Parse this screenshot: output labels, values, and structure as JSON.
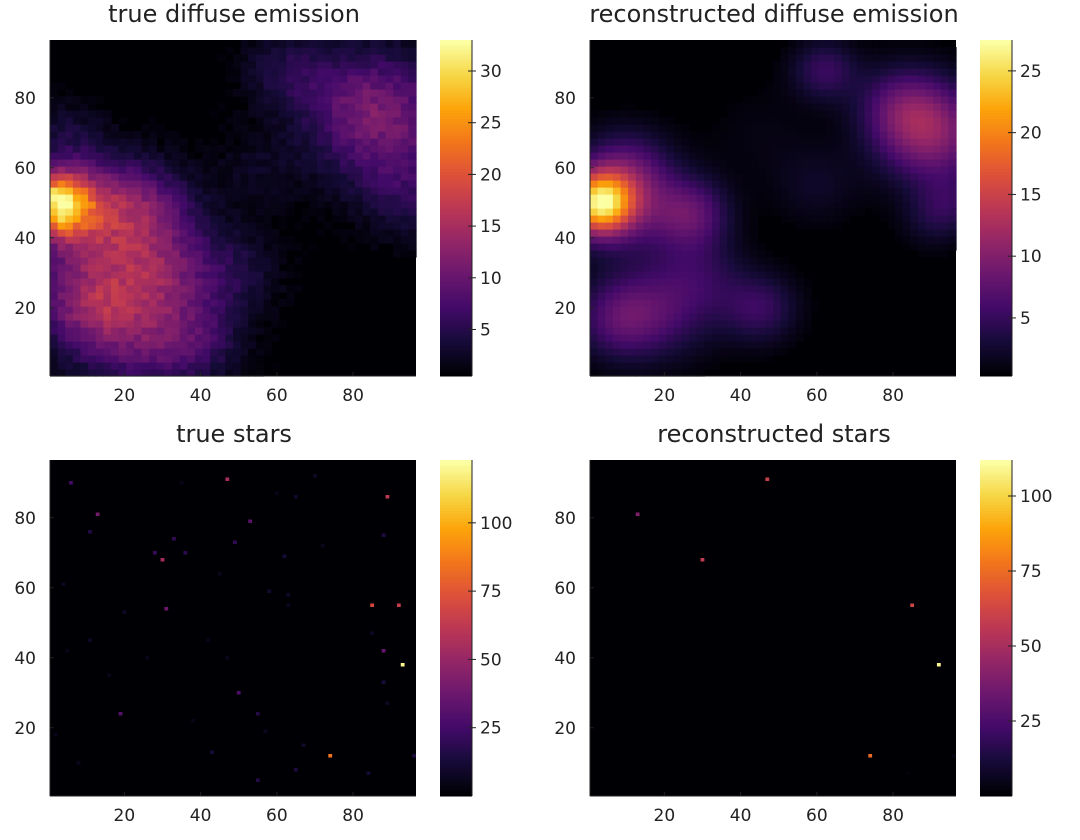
{
  "chart_data": [
    {
      "id": "p1",
      "type": "heatmap",
      "title": "true diffuse emission",
      "xlim": [
        1,
        96
      ],
      "ylim": [
        1,
        96
      ],
      "xticks": [
        "20",
        "40",
        "60",
        "80"
      ],
      "yticks": [
        "20",
        "40",
        "60",
        "80"
      ],
      "colormap": "inferno",
      "colorbar": {
        "min": 0.5,
        "max": 33,
        "ticks": [
          "5",
          "10",
          "15",
          "20",
          "25",
          "30"
        ],
        "tick_values": [
          5,
          10,
          15,
          20,
          25,
          30
        ]
      },
      "blobs": [
        [
          2,
          50,
          6,
          24
        ],
        [
          9,
          50,
          9,
          8
        ],
        [
          18,
          40,
          14,
          6
        ],
        [
          25,
          50,
          8,
          5
        ],
        [
          20,
          25,
          16,
          7
        ],
        [
          10,
          20,
          8,
          6
        ],
        [
          25,
          10,
          10,
          5
        ],
        [
          40,
          10,
          8,
          4
        ],
        [
          30,
          30,
          10,
          4
        ],
        [
          5,
          70,
          7,
          3
        ],
        [
          90,
          72,
          14,
          9
        ],
        [
          80,
          80,
          10,
          4
        ],
        [
          62,
          88,
          8,
          4
        ],
        [
          95,
          50,
          8,
          3
        ],
        [
          55,
          60,
          8,
          2
        ],
        [
          50,
          30,
          8,
          3
        ]
      ],
      "texture": 1.8
    },
    {
      "id": "p2",
      "type": "heatmap",
      "title": "reconstructed diffuse emission",
      "xlim": [
        1,
        96
      ],
      "ylim": [
        1,
        96
      ],
      "xticks": [
        "20",
        "40",
        "60",
        "80"
      ],
      "yticks": [
        "20",
        "40",
        "60",
        "80"
      ],
      "colormap": "inferno",
      "colorbar": {
        "min": 0.3,
        "max": 27.5,
        "ticks": [
          "5",
          "10",
          "15",
          "20",
          "25"
        ],
        "tick_values": [
          5,
          10,
          15,
          20,
          25
        ]
      },
      "blobs": [
        [
          3,
          50,
          6,
          22
        ],
        [
          10,
          50,
          10,
          6
        ],
        [
          10,
          60,
          8,
          5
        ],
        [
          27,
          47,
          7,
          7
        ],
        [
          8,
          17,
          8,
          6
        ],
        [
          20,
          20,
          10,
          5
        ],
        [
          45,
          20,
          7,
          5
        ],
        [
          30,
          30,
          8,
          3
        ],
        [
          90,
          70,
          10,
          10
        ],
        [
          82,
          78,
          8,
          5
        ],
        [
          62,
          88,
          6,
          5
        ],
        [
          95,
          50,
          6,
          3
        ],
        [
          60,
          55,
          8,
          2
        ],
        [
          90,
          45,
          6,
          2
        ],
        [
          45,
          70,
          10,
          1
        ]
      ],
      "texture": 0
    },
    {
      "id": "p3",
      "type": "heatmap",
      "title": "true stars",
      "xlim": [
        1,
        96
      ],
      "ylim": [
        1,
        96
      ],
      "xticks": [
        "20",
        "40",
        "60",
        "80"
      ],
      "yticks": [
        "20",
        "40",
        "60",
        "80"
      ],
      "colormap": "inferno",
      "colorbar": {
        "min": 0,
        "max": 123,
        "ticks": [
          "25",
          "50",
          "75",
          "100"
        ],
        "tick_values": [
          25,
          50,
          75,
          100
        ]
      },
      "stars": [
        [
          93,
          38,
          120
        ],
        [
          74,
          12,
          85
        ],
        [
          85,
          55,
          70
        ],
        [
          92,
          55,
          65
        ],
        [
          89,
          86,
          62
        ],
        [
          47,
          91,
          55
        ],
        [
          30,
          68,
          55
        ],
        [
          13,
          81,
          40
        ],
        [
          31,
          54,
          38
        ],
        [
          88,
          42,
          35
        ],
        [
          53,
          79,
          32
        ],
        [
          19,
          24,
          30
        ],
        [
          50,
          30,
          28
        ],
        [
          6,
          90,
          25
        ],
        [
          28,
          70,
          22
        ],
        [
          33,
          74,
          20
        ],
        [
          49,
          73,
          20
        ],
        [
          36,
          70,
          18
        ],
        [
          11,
          76,
          16
        ],
        [
          55,
          24,
          16
        ],
        [
          88,
          75,
          15
        ],
        [
          62,
          69,
          12
        ],
        [
          88,
          33,
          13
        ],
        [
          96,
          12,
          14
        ],
        [
          55,
          5,
          16
        ],
        [
          65,
          8,
          14
        ],
        [
          67,
          15,
          10
        ],
        [
          84,
          7,
          12
        ],
        [
          43,
          13,
          12
        ],
        [
          58,
          59,
          10
        ],
        [
          63,
          58,
          9
        ],
        [
          65,
          86,
          9
        ],
        [
          70,
          92,
          8
        ],
        [
          20,
          53,
          8
        ],
        [
          4,
          61,
          7
        ],
        [
          45,
          64,
          6
        ],
        [
          11,
          45,
          8
        ],
        [
          57,
          19,
          7
        ],
        [
          85,
          47,
          7
        ],
        [
          89,
          27,
          8
        ],
        [
          63,
          55,
          6
        ],
        [
          72,
          72,
          6
        ],
        [
          8,
          10,
          6
        ],
        [
          38,
          22,
          5
        ],
        [
          26,
          40,
          5
        ],
        [
          16,
          35,
          6
        ],
        [
          42,
          45,
          5
        ],
        [
          47,
          40,
          5
        ],
        [
          5,
          42,
          5
        ],
        [
          60,
          87,
          5
        ],
        [
          2,
          18,
          5
        ],
        [
          35,
          90,
          5
        ]
      ]
    },
    {
      "id": "p4",
      "type": "heatmap",
      "title": "reconstructed stars",
      "xlim": [
        1,
        96
      ],
      "ylim": [
        1,
        96
      ],
      "xticks": [
        "20",
        "40",
        "60",
        "80"
      ],
      "yticks": [
        "20",
        "40",
        "60",
        "80"
      ],
      "colormap": "inferno",
      "colorbar": {
        "min": 0,
        "max": 112,
        "ticks": [
          "25",
          "50",
          "75",
          "100"
        ],
        "tick_values": [
          25,
          50,
          75,
          100
        ]
      },
      "stars": [
        [
          92,
          38,
          110
        ],
        [
          74,
          12,
          75
        ],
        [
          85,
          55,
          62
        ],
        [
          30,
          68,
          58
        ],
        [
          47,
          91,
          60
        ],
        [
          13,
          81,
          40
        ],
        [
          96,
          12,
          3
        ],
        [
          84,
          7,
          2
        ]
      ]
    }
  ]
}
